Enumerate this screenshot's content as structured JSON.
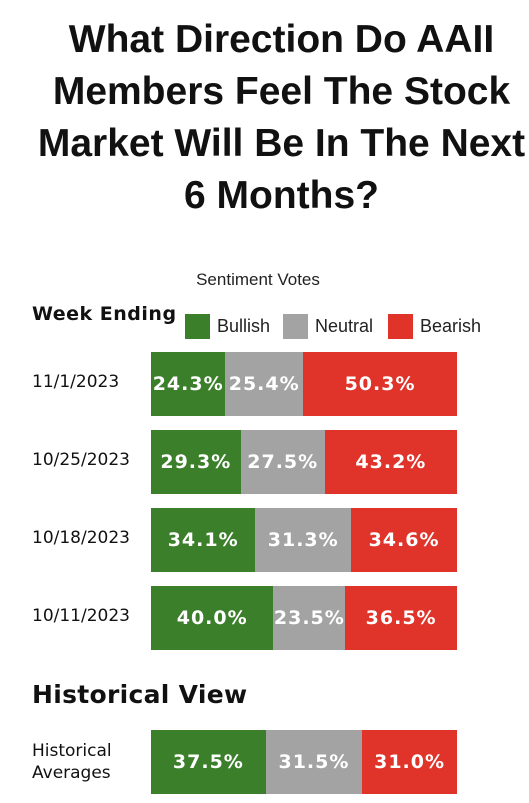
{
  "title": "What Direction Do AAII Members Feel The Stock Market Will Be In The Next 6 Months?",
  "colors": {
    "bullish": "#3b7f2b",
    "neutral": "#a3a3a3",
    "bearish": "#e0332a"
  },
  "chart_data": {
    "type": "bar",
    "orientation": "horizontal",
    "stacked": true,
    "title": "What Direction Do AAII Members Feel The Stock Market Will Be In The Next 6 Months?",
    "subtitle": "Sentiment Votes",
    "row_header": "Week Ending",
    "legend": [
      "Bullish",
      "Neutral",
      "Bearish"
    ],
    "legend_placement": "top",
    "categories": [
      "11/1/2023",
      "10/25/2023",
      "10/18/2023",
      "10/11/2023"
    ],
    "series": [
      {
        "name": "Bullish",
        "values": [
          24.3,
          29.3,
          34.1,
          40.0
        ],
        "labels": [
          "24.3%",
          "29.3%",
          "34.1%",
          "40.0%"
        ]
      },
      {
        "name": "Neutral",
        "values": [
          25.4,
          27.5,
          31.3,
          23.5
        ],
        "labels": [
          "25.4%",
          "27.5%",
          "31.3%",
          "23.5%"
        ]
      },
      {
        "name": "Bearish",
        "values": [
          50.3,
          43.2,
          34.6,
          36.5
        ],
        "labels": [
          "50.3%",
          "43.2%",
          "34.6%",
          "36.5%"
        ]
      }
    ],
    "historical": {
      "section_title": "Historical View",
      "label_lines": [
        "Historical",
        "Averages"
      ],
      "values": {
        "Bullish": 37.5,
        "Neutral": 31.5,
        "Bearish": 31.0
      },
      "labels": {
        "Bullish": "37.5%",
        "Neutral": "31.5%",
        "Bearish": "31.0%"
      }
    }
  }
}
